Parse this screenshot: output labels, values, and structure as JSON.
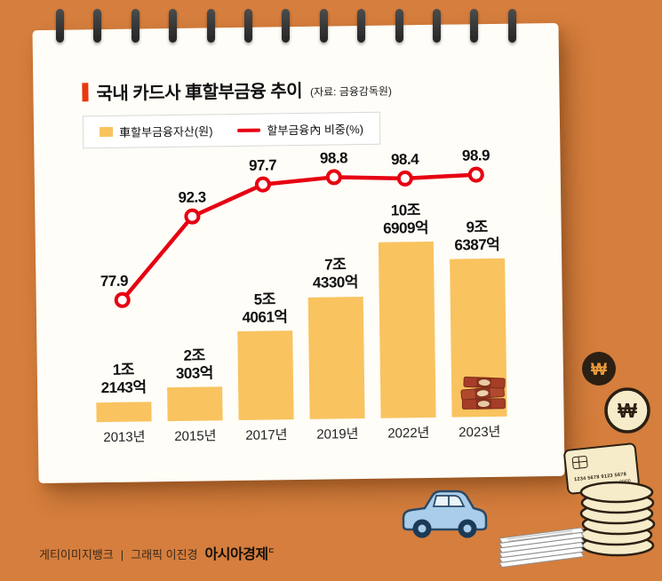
{
  "header": {
    "title": "국내 카드사 車할부금융 추이",
    "source": "(자료: 금융감독원)"
  },
  "legend": {
    "bar_label": "車할부금융자산(원)",
    "line_label": "할부금융內 비중(%)"
  },
  "chart_data": {
    "type": "bar",
    "combo": "bar+line",
    "title": "국내 카드사 車할부금융 추이",
    "source": "금융감독원",
    "legend_position": "top-left",
    "grid": false,
    "categories": [
      "2013년",
      "2015년",
      "2017년",
      "2019년",
      "2022년",
      "2023년"
    ],
    "series": [
      {
        "name": "車할부금융자산(원)",
        "type": "bar",
        "unit": "억원",
        "values": [
          12143,
          20303,
          54061,
          74330,
          106909,
          96387
        ],
        "labels": [
          [
            "1조",
            "2143억"
          ],
          [
            "2조",
            "303억"
          ],
          [
            "5조",
            "4061억"
          ],
          [
            "7조",
            "4330억"
          ],
          [
            "10조",
            "6909억"
          ],
          [
            "9조",
            "6387억"
          ]
        ],
        "color": "#F9C35F"
      },
      {
        "name": "할부금융內 비중(%)",
        "type": "line",
        "unit": "%",
        "values": [
          77.9,
          92.3,
          97.7,
          98.8,
          98.4,
          98.9
        ],
        "labels": [
          "77.9",
          "92.3",
          "97.7",
          "98.8",
          "98.4",
          "98.9"
        ],
        "color": "#E60012"
      }
    ]
  },
  "footer": {
    "credit": "게티이미지뱅크",
    "divider": "|",
    "graphic": "그래픽 이진경",
    "brand": "아시아경제",
    "brand_mark": "ㄷ"
  },
  "decor": {
    "won": "₩",
    "card_number": "1234 5678 9123 5678",
    "card_expiry": "00/00"
  },
  "colors": {
    "background": "#D57E3D",
    "paper": "#FFFDF7",
    "bar": "#F9C35F",
    "line": "#E60012",
    "accent": "#E8380D"
  }
}
